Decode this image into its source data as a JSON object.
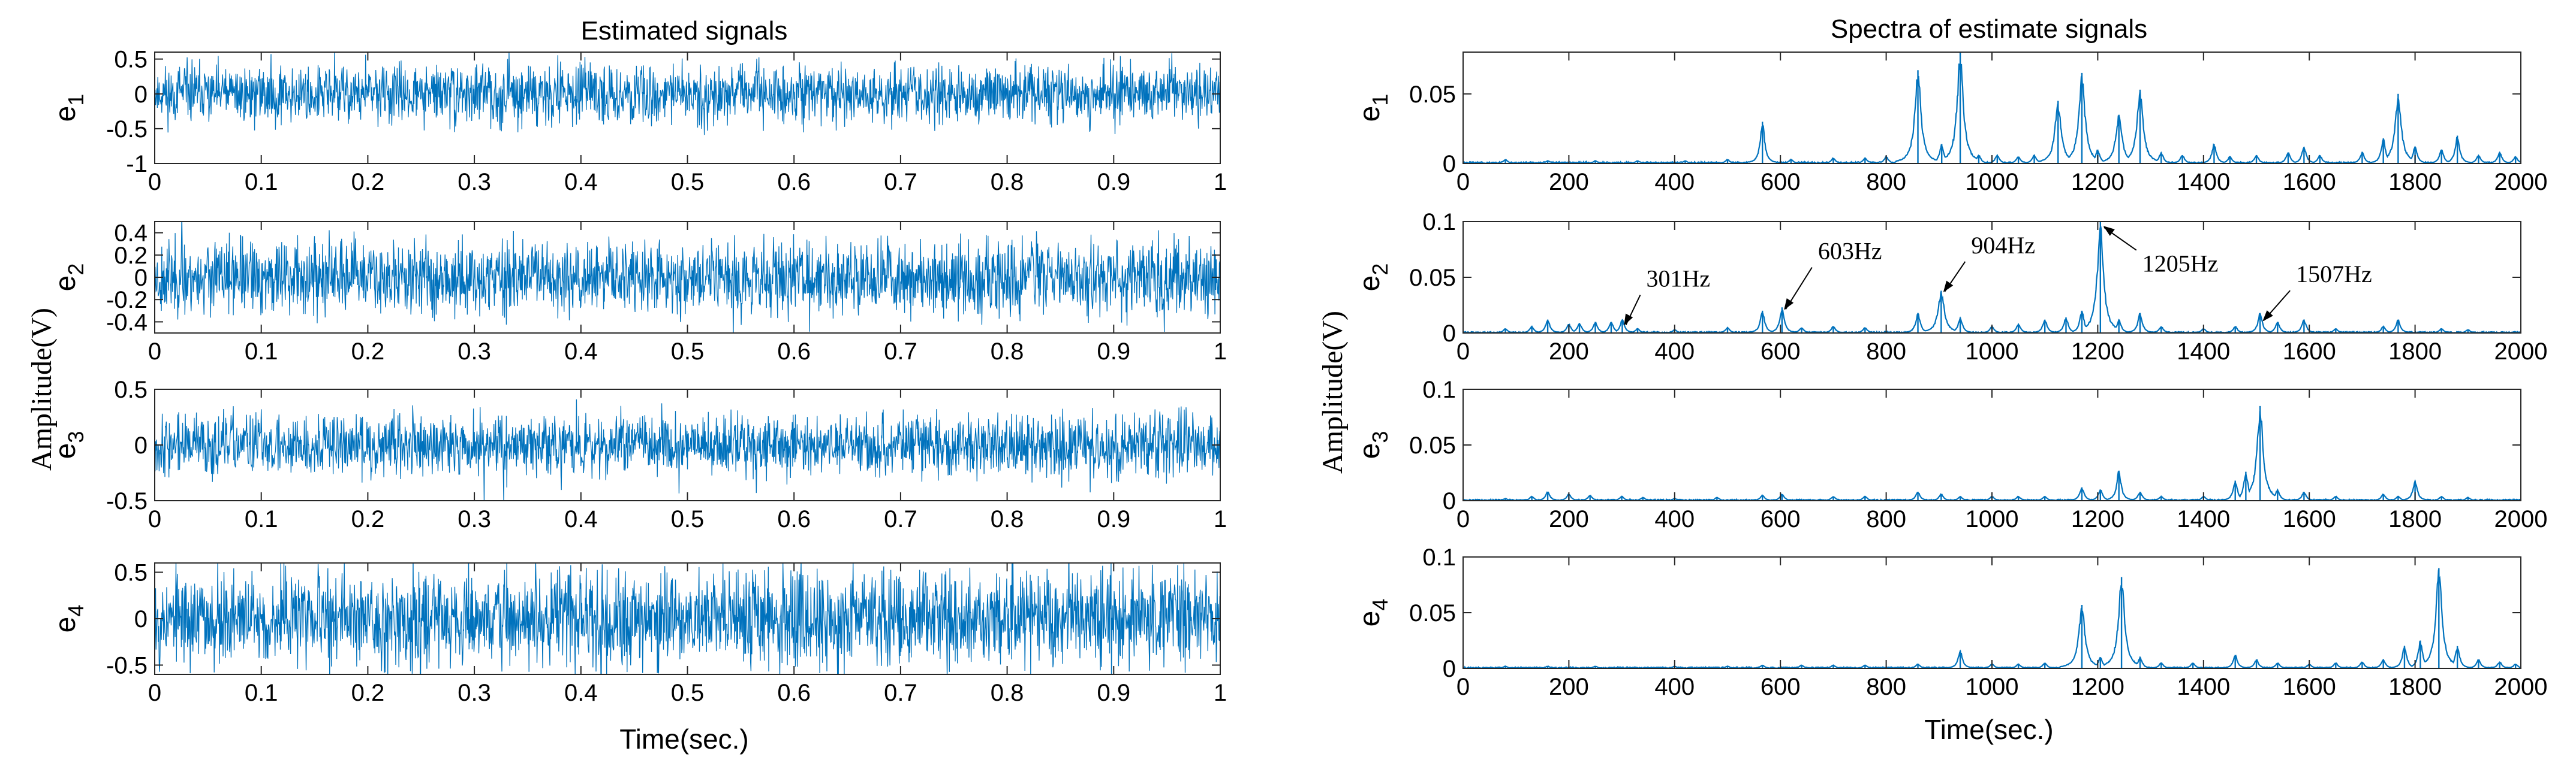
{
  "figure": {
    "left_panel": {
      "title": "Estimated signals",
      "xlabel": "Time(sec.)",
      "ylabel": "Amplitude(V)"
    },
    "right_panel": {
      "title": "Spectra of estimate signals",
      "xlabel": "Time(sec.)",
      "ylabel": "Amplitude(V)"
    }
  },
  "colors": {
    "series": "#0072BD",
    "axis": "#262626",
    "text": "#000000"
  },
  "chart_data": [
    {
      "type": "line",
      "panel": "left",
      "name": "e1",
      "label_base": "e",
      "label_sub": "1",
      "x_range": [
        0,
        1
      ],
      "ylim": [
        -1,
        0.6
      ],
      "xticks": [
        0,
        0.1,
        0.2,
        0.3,
        0.4,
        0.5,
        0.6,
        0.7,
        0.8,
        0.9,
        1
      ],
      "xtick_labels": [
        "0",
        "0.1",
        "0.2",
        "0.3",
        "0.4",
        "0.5",
        "0.6",
        "0.7",
        "0.8",
        "0.9",
        "1"
      ],
      "yticks": [
        -1,
        -0.5,
        0,
        0.5
      ],
      "ytick_labels": [
        "-1",
        "-0.5",
        "0",
        "0.5"
      ],
      "noise_amplitude": 0.45,
      "seed": 11
    },
    {
      "type": "line",
      "panel": "left",
      "name": "e2",
      "label_base": "e",
      "label_sub": "2",
      "x_range": [
        0,
        1
      ],
      "ylim": [
        -0.5,
        0.5
      ],
      "xticks": [
        0,
        0.1,
        0.2,
        0.3,
        0.4,
        0.5,
        0.6,
        0.7,
        0.8,
        0.9,
        1
      ],
      "xtick_labels": [
        "0",
        "0.1",
        "0.2",
        "0.3",
        "0.4",
        "0.5",
        "0.6",
        "0.7",
        "0.8",
        "0.9",
        "1"
      ],
      "yticks": [
        -0.4,
        -0.2,
        0,
        0.2,
        0.4
      ],
      "ytick_labels": [
        "-0.4",
        "-0.2",
        "0",
        "0.2",
        "0.4"
      ],
      "noise_amplitude": 0.36,
      "seed": 23
    },
    {
      "type": "line",
      "panel": "left",
      "name": "e3",
      "label_base": "e",
      "label_sub": "3",
      "x_range": [
        0,
        1
      ],
      "ylim": [
        -0.5,
        0.5
      ],
      "xticks": [
        0,
        0.1,
        0.2,
        0.3,
        0.4,
        0.5,
        0.6,
        0.7,
        0.8,
        0.9,
        1
      ],
      "xtick_labels": [
        "0",
        "0.1",
        "0.2",
        "0.3",
        "0.4",
        "0.5",
        "0.6",
        "0.7",
        "0.8",
        "0.9",
        "1"
      ],
      "yticks": [
        -0.5,
        0,
        0.5
      ],
      "ytick_labels": [
        "-0.5",
        "0",
        "0.5"
      ],
      "noise_amplitude": 0.3,
      "seed": 37
    },
    {
      "type": "line",
      "panel": "left",
      "name": "e4",
      "label_base": "e",
      "label_sub": "4",
      "x_range": [
        0,
        1
      ],
      "ylim": [
        -0.6,
        0.6
      ],
      "xticks": [
        0,
        0.1,
        0.2,
        0.3,
        0.4,
        0.5,
        0.6,
        0.7,
        0.8,
        0.9,
        1
      ],
      "xtick_labels": [
        "0",
        "0.1",
        "0.2",
        "0.3",
        "0.4",
        "0.5",
        "0.6",
        "0.7",
        "0.8",
        "0.9",
        "1"
      ],
      "yticks": [
        -0.5,
        0,
        0.5
      ],
      "ytick_labels": [
        "-0.5",
        "0",
        "0.5"
      ],
      "noise_amplitude": 0.55,
      "seed": 53
    },
    {
      "type": "spectrum",
      "panel": "right",
      "name": "e1",
      "label_base": "e",
      "label_sub": "1",
      "xlim": [
        0,
        2000
      ],
      "ylim": [
        0,
        0.08
      ],
      "xticks": [
        0,
        200,
        400,
        600,
        800,
        1000,
        1200,
        1400,
        1600,
        1800,
        2000
      ],
      "xtick_labels": [
        "0",
        "200",
        "400",
        "600",
        "800",
        "1000",
        "1200",
        "1400",
        "1600",
        "1800",
        "2000"
      ],
      "yticks": [
        0,
        0.05
      ],
      "ytick_labels": [
        "0",
        "0.05"
      ],
      "peaks": [
        [
          80,
          0.003
        ],
        [
          160,
          0.002
        ],
        [
          250,
          0.002
        ],
        [
          330,
          0.002
        ],
        [
          420,
          0.002
        ],
        [
          500,
          0.003
        ],
        [
          566,
          0.03
        ],
        [
          620,
          0.003
        ],
        [
          700,
          0.004
        ],
        [
          760,
          0.004
        ],
        [
          800,
          0.005
        ],
        [
          860,
          0.067
        ],
        [
          905,
          0.014
        ],
        [
          940,
          0.08
        ],
        [
          975,
          0.006
        ],
        [
          1010,
          0.006
        ],
        [
          1050,
          0.005
        ],
        [
          1080,
          0.006
        ],
        [
          1125,
          0.045
        ],
        [
          1170,
          0.065
        ],
        [
          1200,
          0.01
        ],
        [
          1240,
          0.035
        ],
        [
          1280,
          0.053
        ],
        [
          1320,
          0.008
        ],
        [
          1360,
          0.006
        ],
        [
          1420,
          0.014
        ],
        [
          1450,
          0.005
        ],
        [
          1500,
          0.006
        ],
        [
          1560,
          0.008
        ],
        [
          1590,
          0.012
        ],
        [
          1620,
          0.006
        ],
        [
          1700,
          0.008
        ],
        [
          1740,
          0.018
        ],
        [
          1768,
          0.05
        ],
        [
          1800,
          0.012
        ],
        [
          1850,
          0.01
        ],
        [
          1880,
          0.02
        ],
        [
          1920,
          0.006
        ],
        [
          1960,
          0.008
        ],
        [
          1990,
          0.005
        ]
      ],
      "annotations": []
    },
    {
      "type": "spectrum",
      "panel": "right",
      "name": "e2",
      "label_base": "e",
      "label_sub": "2",
      "xlim": [
        0,
        2000
      ],
      "ylim": [
        0,
        0.1
      ],
      "xticks": [
        0,
        200,
        400,
        600,
        800,
        1000,
        1200,
        1400,
        1600,
        1800,
        2000
      ],
      "xtick_labels": [
        "0",
        "200",
        "400",
        "600",
        "800",
        "1000",
        "1200",
        "1400",
        "1600",
        "1800",
        "2000"
      ],
      "yticks": [
        0,
        0.05,
        0.1
      ],
      "ytick_labels": [
        "0",
        "0.05",
        "0.1"
      ],
      "peaks": [
        [
          80,
          0.004
        ],
        [
          130,
          0.006
        ],
        [
          160,
          0.012
        ],
        [
          200,
          0.008
        ],
        [
          220,
          0.009
        ],
        [
          250,
          0.01
        ],
        [
          280,
          0.01
        ],
        [
          301,
          0.012
        ],
        [
          330,
          0.004
        ],
        [
          400,
          0.003
        ],
        [
          500,
          0.005
        ],
        [
          566,
          0.02
        ],
        [
          603,
          0.023
        ],
        [
          640,
          0.005
        ],
        [
          700,
          0.006
        ],
        [
          760,
          0.005
        ],
        [
          860,
          0.018
        ],
        [
          904,
          0.038
        ],
        [
          940,
          0.014
        ],
        [
          1000,
          0.006
        ],
        [
          1050,
          0.008
        ],
        [
          1100,
          0.012
        ],
        [
          1140,
          0.014
        ],
        [
          1170,
          0.02
        ],
        [
          1205,
          0.1
        ],
        [
          1240,
          0.012
        ],
        [
          1280,
          0.018
        ],
        [
          1320,
          0.006
        ],
        [
          1400,
          0.004
        ],
        [
          1460,
          0.006
        ],
        [
          1507,
          0.018
        ],
        [
          1540,
          0.01
        ],
        [
          1590,
          0.012
        ],
        [
          1650,
          0.004
        ],
        [
          1740,
          0.006
        ],
        [
          1768,
          0.012
        ],
        [
          1850,
          0.004
        ],
        [
          1900,
          0.003
        ]
      ],
      "annotations": [
        {
          "label": "301Hz",
          "x": 301,
          "y": 0.004
        },
        {
          "label": "603Hz",
          "x": 603,
          "y": 0.018
        },
        {
          "label": "904Hz",
          "x": 904,
          "y": 0.034
        },
        {
          "label": "1205Hz",
          "x": 1205,
          "y": 0.098
        },
        {
          "label": "1507Hz",
          "x": 1507,
          "y": 0.008
        }
      ]
    },
    {
      "type": "spectrum",
      "panel": "right",
      "name": "e3",
      "label_base": "e",
      "label_sub": "3",
      "xlim": [
        0,
        2000
      ],
      "ylim": [
        0,
        0.1
      ],
      "xticks": [
        0,
        200,
        400,
        600,
        800,
        1000,
        1200,
        1400,
        1600,
        1800,
        2000
      ],
      "xtick_labels": [
        "0",
        "200",
        "400",
        "600",
        "800",
        "1000",
        "1200",
        "1400",
        "1600",
        "1800",
        "2000"
      ],
      "yticks": [
        0,
        0.05,
        0.1
      ],
      "ytick_labels": [
        "0",
        "0.05",
        "0.1"
      ],
      "peaks": [
        [
          80,
          0.002
        ],
        [
          130,
          0.004
        ],
        [
          160,
          0.008
        ],
        [
          200,
          0.006
        ],
        [
          240,
          0.005
        ],
        [
          300,
          0.004
        ],
        [
          340,
          0.003
        ],
        [
          400,
          0.002
        ],
        [
          480,
          0.003
        ],
        [
          566,
          0.005
        ],
        [
          603,
          0.006
        ],
        [
          700,
          0.004
        ],
        [
          760,
          0.004
        ],
        [
          860,
          0.008
        ],
        [
          904,
          0.006
        ],
        [
          940,
          0.004
        ],
        [
          1000,
          0.004
        ],
        [
          1050,
          0.004
        ],
        [
          1100,
          0.004
        ],
        [
          1170,
          0.012
        ],
        [
          1205,
          0.01
        ],
        [
          1240,
          0.027
        ],
        [
          1280,
          0.008
        ],
        [
          1320,
          0.004
        ],
        [
          1400,
          0.004
        ],
        [
          1460,
          0.018
        ],
        [
          1480,
          0.026
        ],
        [
          1507,
          0.085
        ],
        [
          1540,
          0.01
        ],
        [
          1590,
          0.008
        ],
        [
          1650,
          0.004
        ],
        [
          1740,
          0.006
        ],
        [
          1768,
          0.004
        ],
        [
          1800,
          0.018
        ],
        [
          1850,
          0.004
        ],
        [
          1900,
          0.003
        ]
      ],
      "annotations": []
    },
    {
      "type": "spectrum",
      "panel": "right",
      "name": "e4",
      "label_base": "e",
      "label_sub": "4",
      "xlim": [
        0,
        2000
      ],
      "ylim": [
        0,
        0.1
      ],
      "xticks": [
        0,
        200,
        400,
        600,
        800,
        1000,
        1200,
        1400,
        1600,
        1800,
        2000
      ],
      "xtick_labels": [
        "0",
        "200",
        "400",
        "600",
        "800",
        "1000",
        "1200",
        "1400",
        "1600",
        "1800",
        "2000"
      ],
      "yticks": [
        0,
        0.05,
        0.1
      ],
      "ytick_labels": [
        "0",
        "0.05",
        "0.1"
      ],
      "peaks": [
        [
          80,
          0.002
        ],
        [
          160,
          0.002
        ],
        [
          250,
          0.002
        ],
        [
          400,
          0.002
        ],
        [
          500,
          0.002
        ],
        [
          566,
          0.003
        ],
        [
          640,
          0.003
        ],
        [
          700,
          0.003
        ],
        [
          760,
          0.003
        ],
        [
          860,
          0.004
        ],
        [
          940,
          0.016
        ],
        [
          1000,
          0.004
        ],
        [
          1050,
          0.004
        ],
        [
          1100,
          0.005
        ],
        [
          1170,
          0.057
        ],
        [
          1205,
          0.01
        ],
        [
          1245,
          0.082
        ],
        [
          1280,
          0.01
        ],
        [
          1320,
          0.005
        ],
        [
          1380,
          0.005
        ],
        [
          1460,
          0.012
        ],
        [
          1500,
          0.008
        ],
        [
          1540,
          0.005
        ],
        [
          1600,
          0.004
        ],
        [
          1650,
          0.005
        ],
        [
          1700,
          0.006
        ],
        [
          1740,
          0.008
        ],
        [
          1780,
          0.02
        ],
        [
          1810,
          0.025
        ],
        [
          1845,
          0.09
        ],
        [
          1880,
          0.02
        ],
        [
          1920,
          0.008
        ],
        [
          1960,
          0.006
        ],
        [
          1990,
          0.004
        ]
      ],
      "annotations": []
    }
  ]
}
